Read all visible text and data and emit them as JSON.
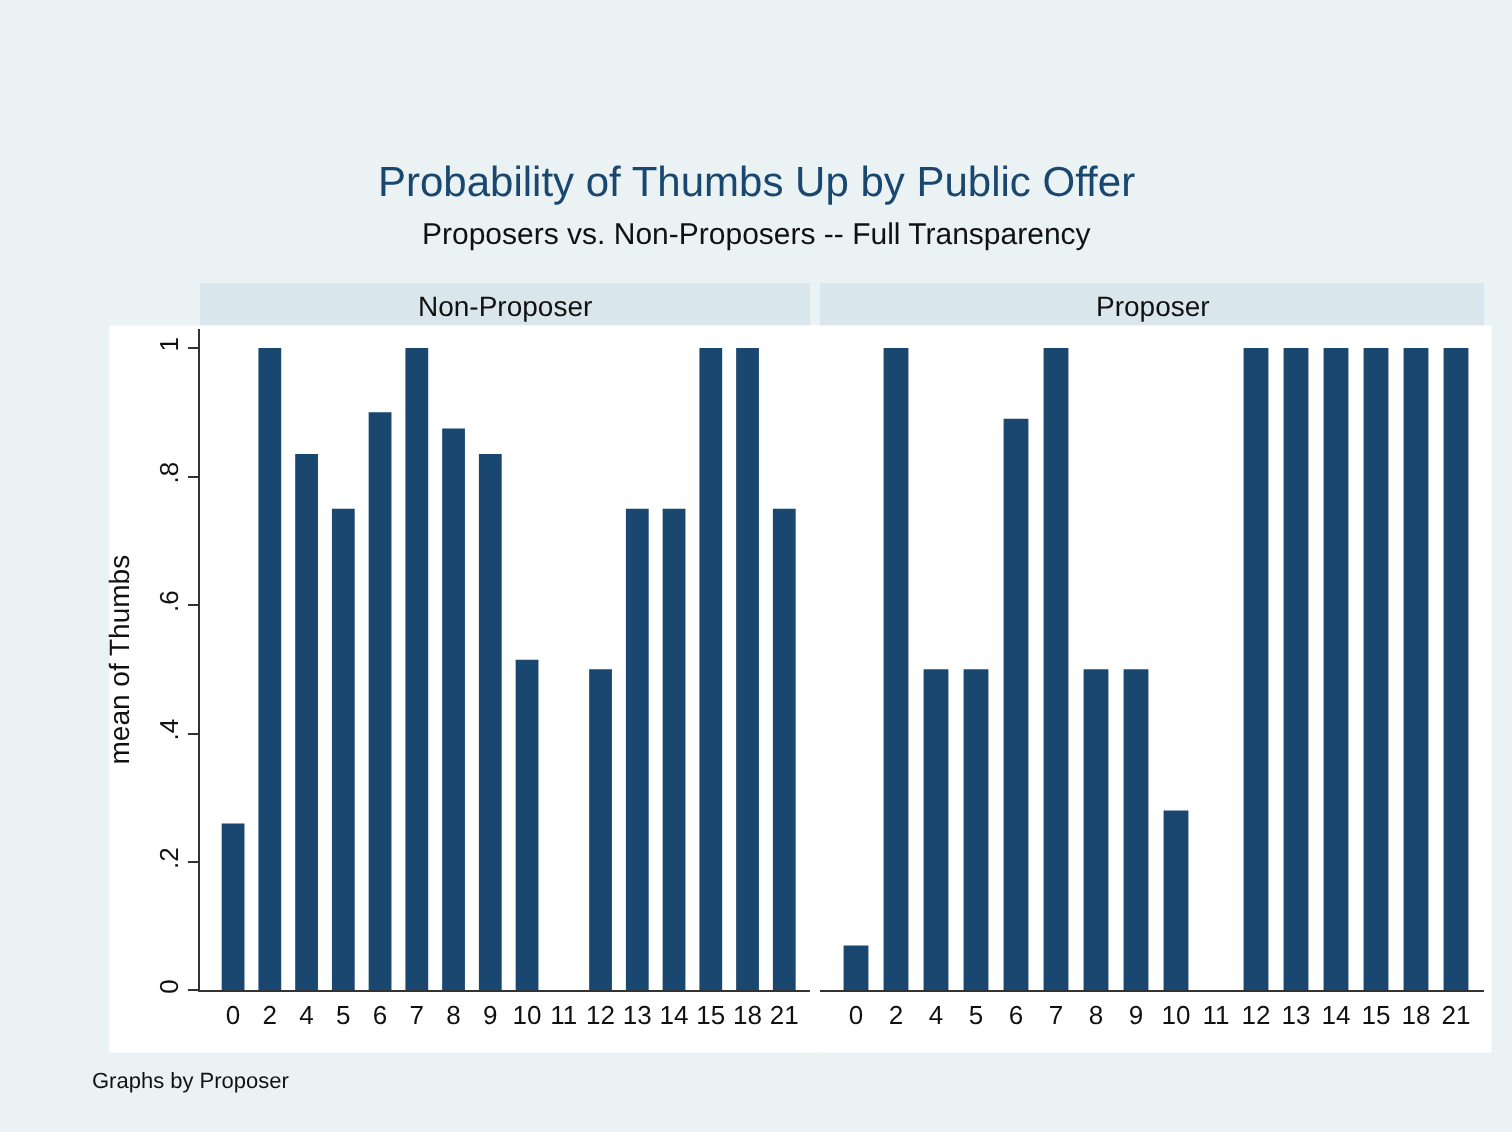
{
  "chart_data": [
    {
      "type": "bar",
      "title": "Non-Proposer",
      "ylabel": "mean of Thumbs",
      "annotations": [
        "Probability of Thumbs Up by Public Offer",
        "Proposers vs. Non-Proposers -- Full Transparency",
        "Graphs by Proposer"
      ],
      "categories": [
        "0",
        "2",
        "4",
        "5",
        "6",
        "7",
        "8",
        "9",
        "10",
        "11",
        "12",
        "13",
        "14",
        "15",
        "18",
        "21"
      ],
      "values": [
        0.26,
        1,
        0.835,
        0.75,
        0.9,
        1,
        0.875,
        0.835,
        0.515,
        0,
        0.5,
        0.75,
        0.75,
        1,
        1,
        0.75
      ],
      "color": "#1a476f",
      "ylim": [
        0,
        1.03
      ],
      "yticks": [
        0,
        {
          "value": 0.2,
          "label": ".2"
        },
        {
          "value": 0.4,
          "label": ".4"
        },
        {
          "value": 0.6,
          "label": ".6"
        },
        {
          "value": 0.8,
          "label": ".8"
        },
        1
      ],
      "grid": false
    },
    {
      "type": "bar",
      "title": "Proposer",
      "categories": [
        "0",
        "2",
        "4",
        "5",
        "6",
        "7",
        "8",
        "9",
        "10",
        "11",
        "12",
        "13",
        "14",
        "15",
        "18",
        "21"
      ],
      "values": [
        0.07,
        1,
        0.5,
        0.5,
        0.89,
        1,
        0.5,
        0.5,
        0.28,
        0,
        1,
        1,
        1,
        1,
        1,
        1
      ],
      "color": "#1a476f",
      "ylim": [
        0,
        1.03
      ],
      "grid": false,
      "tick_labels": "x"
    }
  ]
}
